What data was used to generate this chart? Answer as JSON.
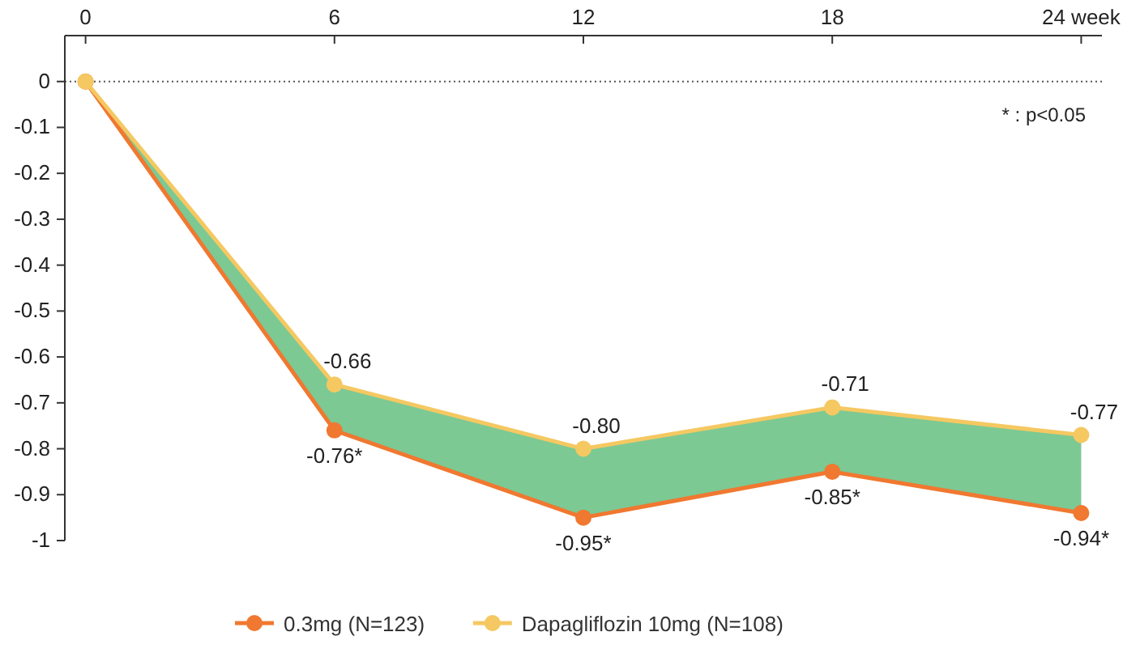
{
  "chart_data": {
    "type": "line",
    "x": [
      0,
      6,
      12,
      18,
      24
    ],
    "xlim": [
      -0.5,
      24.5
    ],
    "xticks": [
      0,
      6,
      12,
      18,
      {
        "value": 24,
        "label": "24 week"
      }
    ],
    "ylim": [
      -1,
      0.1
    ],
    "yticks": [
      0,
      -0.1,
      -0.2,
      -0.3,
      -0.4,
      -0.5,
      -0.6,
      -0.7,
      -0.8,
      -0.9,
      -1
    ],
    "series": [
      {
        "name": "0.3mg (N=123)",
        "color": "#f07830",
        "values": [
          0,
          -0.76,
          -0.95,
          -0.85,
          -0.94
        ],
        "value_labels": [
          null,
          "-0.76*",
          "-0.95*",
          "-0.85*",
          "-0.94*"
        ]
      },
      {
        "name": "Dapagliflozin 10mg (N=108)",
        "color": "#f5c862",
        "values": [
          0,
          -0.66,
          -0.8,
          -0.71,
          -0.77
        ],
        "value_labels": [
          null,
          "-0.66",
          "-0.80",
          "-0.71",
          "-0.77"
        ],
        "lower": [
          0,
          -0.76,
          -0.95,
          -0.85,
          -0.94
        ],
        "upper": [
          0,
          -0.66,
          -0.8,
          -0.71,
          -0.77
        ]
      }
    ],
    "ref_lines": [
      {
        "axis": "y",
        "value": 0,
        "line_style": "dotted",
        "color": "#555555"
      }
    ],
    "annotations": [
      "* : p<0.05"
    ],
    "marker": "circle",
    "line_style": "solid",
    "grid": false,
    "legend": "bottom"
  }
}
